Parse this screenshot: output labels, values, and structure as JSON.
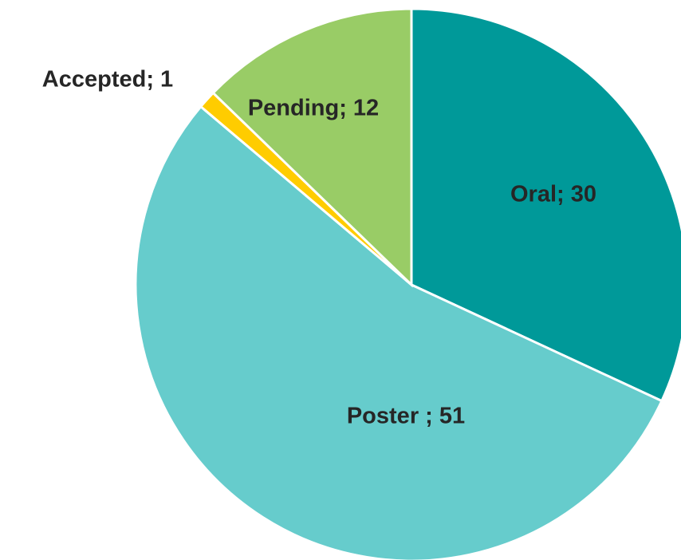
{
  "chart_data": {
    "type": "pie",
    "values": [
      30,
      51,
      1,
      12
    ],
    "value_labels": [
      "Oral; 30",
      "Poster ; 51",
      "Accepted; 1",
      "Pending; 12"
    ],
    "colors": [
      "#009999",
      "#66cccc",
      "#ffcc00",
      "#99cc66"
    ]
  }
}
